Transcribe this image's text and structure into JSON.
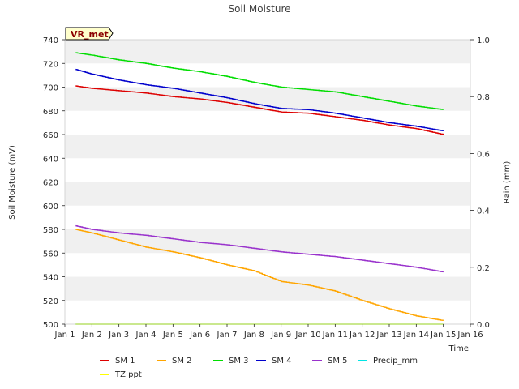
{
  "chart_data": {
    "type": "line",
    "title": "Soil Moisture",
    "xlabel": "Time",
    "ylabel": "Soil Moisture (mV)",
    "y2label": "Rain (mm)",
    "badge": "VR_met",
    "xlim": [
      1,
      16
    ],
    "ylim": [
      500,
      740
    ],
    "y2lim": [
      0,
      1.0
    ],
    "x_ticks": [
      1,
      2,
      3,
      4,
      5,
      6,
      7,
      8,
      9,
      10,
      11,
      12,
      13,
      14,
      15,
      16
    ],
    "x_tick_labels": [
      "Jan 1",
      "Jan 2",
      "Jan 3",
      "Jan 4",
      "Jan 5",
      "Jan 6",
      "Jan 7",
      "Jan 8",
      "Jan 9",
      "Jan 10",
      "Jan 11",
      "Jan 12",
      "Jan 13",
      "Jan 14",
      "Jan 15",
      "Jan 16"
    ],
    "y_ticks": [
      500,
      520,
      540,
      560,
      580,
      600,
      620,
      640,
      660,
      680,
      700,
      720,
      740
    ],
    "y2_ticks": [
      0.0,
      0.2,
      0.4,
      0.6,
      0.8,
      1.0
    ],
    "y2_tick_labels": [
      "0.0",
      "0.2",
      "0.4",
      "0.6",
      "0.8",
      "1.0"
    ],
    "series": [
      {
        "name": "SM 1",
        "color": "#dd0000",
        "axis": "left",
        "x": [
          1.4,
          2,
          3,
          4,
          5,
          6,
          7,
          8,
          9,
          10,
          11,
          12,
          13,
          14,
          15
        ],
        "y": [
          701,
          699,
          697,
          695,
          692,
          690,
          687,
          683,
          679,
          678,
          675,
          672,
          668,
          665,
          660
        ]
      },
      {
        "name": "SM 2",
        "color": "#ffa500",
        "axis": "left",
        "x": [
          1.4,
          2,
          3,
          4,
          5,
          6,
          7,
          8,
          9,
          10,
          11,
          12,
          13,
          14,
          15
        ],
        "y": [
          580,
          577,
          571,
          565,
          561,
          556,
          550,
          545,
          536,
          533,
          528,
          520,
          513,
          507,
          503
        ]
      },
      {
        "name": "SM 3",
        "color": "#00dd00",
        "axis": "left",
        "x": [
          1.4,
          2,
          3,
          4,
          5,
          6,
          7,
          8,
          9,
          10,
          11,
          12,
          13,
          14,
          15
        ],
        "y": [
          729,
          727,
          723,
          720,
          716,
          713,
          709,
          704,
          700,
          698,
          696,
          692,
          688,
          684,
          681
        ]
      },
      {
        "name": "SM 4",
        "color": "#0000cc",
        "axis": "left",
        "x": [
          1.4,
          2,
          3,
          4,
          5,
          6,
          7,
          8,
          9,
          10,
          11,
          12,
          13,
          14,
          15
        ],
        "y": [
          715,
          711,
          706,
          702,
          699,
          695,
          691,
          686,
          682,
          681,
          678,
          674,
          670,
          667,
          663
        ]
      },
      {
        "name": "SM 5",
        "color": "#9932cc",
        "axis": "left",
        "x": [
          1.4,
          2,
          3,
          4,
          5,
          6,
          7,
          8,
          9,
          10,
          11,
          12,
          13,
          14,
          15
        ],
        "y": [
          583,
          580,
          577,
          575,
          572,
          569,
          567,
          564,
          561,
          559,
          557,
          554,
          551,
          548,
          544
        ]
      },
      {
        "name": "Precip_mm",
        "color": "#00e5e5",
        "axis": "right",
        "x": [
          1.4,
          15
        ],
        "y": [
          0,
          0
        ]
      },
      {
        "name": "TZ ppt",
        "color": "#ffff00",
        "axis": "left",
        "x": [
          1.4,
          15
        ],
        "y": [
          500,
          500
        ]
      }
    ]
  }
}
